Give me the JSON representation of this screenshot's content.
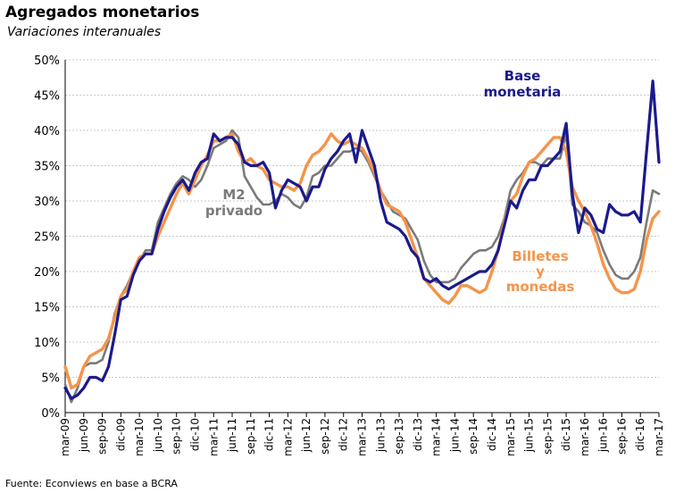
{
  "header": {
    "title": "Agregados monetarios",
    "subtitle": "Variaciones interanuales"
  },
  "footer": {
    "source": "Fuente: Econviews en base a BCRA"
  },
  "chart_data": {
    "type": "line",
    "title": "Agregados monetarios",
    "subtitle": "Variaciones interanuales",
    "xlabel": "",
    "ylabel": "",
    "ylim": [
      0,
      50
    ],
    "yticks": [
      "0%",
      "5%",
      "10%",
      "15%",
      "20%",
      "25%",
      "30%",
      "35%",
      "40%",
      "45%",
      "50%"
    ],
    "x_tick_labels": [
      "mar-09",
      "jun-09",
      "sep-09",
      "dic-09",
      "mar-10",
      "jun-10",
      "sep-10",
      "dic-10",
      "mar-11",
      "jun-11",
      "sep-11",
      "dic-11",
      "mar-12",
      "jun-12",
      "sep-12",
      "dic-12",
      "mar-13",
      "jun-13",
      "sep-13",
      "dic-13",
      "mar-14",
      "jun-14",
      "sep-14",
      "dic-14",
      "mar-15",
      "jun-15",
      "sep-15",
      "dic-15",
      "mar-16",
      "jun-16",
      "sep-16",
      "dic-16",
      "mar-17"
    ],
    "grid": true,
    "x": [
      "mar-09",
      "abr-09",
      "may-09",
      "jun-09",
      "jul-09",
      "ago-09",
      "sep-09",
      "oct-09",
      "nov-09",
      "dic-09",
      "ene-10",
      "feb-10",
      "mar-10",
      "abr-10",
      "may-10",
      "jun-10",
      "jul-10",
      "ago-10",
      "sep-10",
      "oct-10",
      "nov-10",
      "dic-10",
      "ene-11",
      "feb-11",
      "mar-11",
      "abr-11",
      "may-11",
      "jun-11",
      "jul-11",
      "ago-11",
      "sep-11",
      "oct-11",
      "nov-11",
      "dic-11",
      "ene-12",
      "feb-12",
      "mar-12",
      "abr-12",
      "may-12",
      "jun-12",
      "jul-12",
      "ago-12",
      "sep-12",
      "oct-12",
      "nov-12",
      "dic-12",
      "ene-13",
      "feb-13",
      "mar-13",
      "abr-13",
      "may-13",
      "jun-13",
      "jul-13",
      "ago-13",
      "sep-13",
      "oct-13",
      "nov-13",
      "dic-13",
      "ene-14",
      "feb-14",
      "mar-14",
      "abr-14",
      "may-14",
      "jun-14",
      "jul-14",
      "ago-14",
      "sep-14",
      "oct-14",
      "nov-14",
      "dic-14",
      "ene-15",
      "feb-15",
      "mar-15",
      "abr-15",
      "may-15",
      "jun-15",
      "jul-15",
      "ago-15",
      "sep-15",
      "oct-15",
      "nov-15",
      "dic-15",
      "ene-16",
      "feb-16",
      "mar-16",
      "abr-16",
      "may-16",
      "jun-16",
      "jul-16",
      "ago-16",
      "sep-16",
      "oct-16",
      "nov-16",
      "dic-16",
      "ene-17",
      "feb-17",
      "mar-17"
    ],
    "series": [
      {
        "name": "Base monetaria",
        "color": "#1a1a8c",
        "label": [
          "Base",
          "monetaria"
        ],
        "values": [
          3.5,
          2.0,
          2.5,
          3.5,
          5.0,
          5.0,
          4.5,
          6.5,
          11.0,
          16.0,
          16.5,
          19.5,
          21.5,
          22.5,
          22.5,
          26.0,
          28.5,
          30.5,
          32.0,
          33.0,
          31.5,
          34.0,
          35.5,
          36.0,
          39.5,
          38.5,
          39.0,
          39.0,
          38.0,
          35.5,
          35.0,
          35.0,
          35.5,
          34.0,
          29.0,
          31.5,
          33.0,
          32.5,
          32.0,
          30.0,
          32.0,
          32.0,
          34.5,
          36.0,
          37.0,
          38.5,
          39.5,
          35.5,
          40.0,
          37.5,
          35.0,
          30.0,
          27.0,
          26.5,
          26.0,
          25.0,
          23.0,
          22.0,
          19.0,
          18.5,
          19.0,
          18.0,
          17.5,
          18.0,
          18.5,
          19.0,
          19.5,
          20.0,
          20.0,
          21.0,
          23.0,
          26.5,
          30.0,
          29.0,
          31.5,
          33.0,
          33.0,
          35.0,
          35.0,
          36.0,
          37.0,
          41.0,
          31.0,
          25.5,
          29.0,
          28.0,
          26.0,
          25.5,
          29.5,
          28.5,
          28.0,
          28.0,
          28.5,
          27.0,
          37.0,
          47.0,
          35.5
        ]
      },
      {
        "name": "M2 privado",
        "color": "#7a7a7a",
        "label": [
          "M2",
          "privado"
        ],
        "values": [
          4.0,
          1.5,
          3.5,
          6.5,
          7.0,
          7.0,
          7.5,
          10.0,
          14.0,
          16.5,
          18.0,
          20.0,
          21.5,
          23.0,
          23.0,
          27.0,
          29.0,
          31.0,
          32.5,
          33.5,
          33.0,
          32.0,
          33.0,
          35.0,
          37.5,
          38.0,
          38.5,
          40.0,
          39.0,
          33.5,
          32.0,
          30.5,
          29.5,
          29.5,
          30.0,
          31.0,
          30.5,
          29.5,
          29.0,
          30.5,
          33.5,
          34.0,
          35.0,
          35.0,
          36.0,
          37.0,
          37.0,
          37.5,
          37.0,
          35.5,
          33.5,
          31.5,
          30.0,
          28.5,
          28.0,
          27.5,
          26.0,
          24.5,
          21.5,
          19.5,
          18.5,
          18.5,
          18.5,
          19.0,
          20.5,
          21.5,
          22.5,
          23.0,
          23.0,
          23.5,
          25.0,
          27.5,
          31.5,
          33.0,
          34.0,
          35.5,
          35.5,
          35.0,
          36.0,
          36.0,
          36.0,
          39.5,
          29.5,
          28.5,
          27.0,
          26.5,
          25.5,
          23.0,
          21.0,
          19.5,
          19.0,
          19.0,
          20.0,
          22.0,
          27.0,
          31.5,
          31.0
        ]
      },
      {
        "name": "Billetes y monedas",
        "color": "#f5944a",
        "label": [
          "Billetes",
          "y",
          "monedas"
        ],
        "values": [
          6.5,
          3.5,
          4.0,
          6.5,
          8.0,
          8.5,
          9.0,
          10.5,
          13.5,
          16.5,
          17.5,
          20.0,
          22.0,
          22.5,
          22.5,
          25.0,
          27.0,
          29.0,
          31.0,
          32.5,
          31.0,
          33.0,
          35.0,
          36.5,
          38.5,
          38.5,
          39.0,
          39.5,
          37.0,
          35.5,
          36.0,
          35.0,
          34.5,
          33.0,
          32.5,
          32.0,
          32.0,
          31.5,
          32.5,
          35.0,
          36.5,
          37.0,
          38.0,
          39.5,
          38.5,
          38.0,
          38.5,
          38.0,
          37.5,
          36.0,
          34.0,
          31.5,
          29.5,
          29.0,
          28.5,
          27.0,
          24.5,
          22.0,
          19.0,
          18.0,
          17.0,
          16.0,
          15.5,
          16.5,
          18.0,
          18.0,
          17.5,
          17.0,
          17.5,
          20.0,
          23.0,
          27.0,
          30.0,
          31.0,
          33.5,
          35.5,
          36.0,
          37.0,
          38.0,
          39.0,
          39.0,
          37.0,
          32.0,
          30.0,
          28.5,
          26.5,
          24.0,
          21.0,
          19.0,
          17.5,
          17.0,
          17.0,
          17.5,
          20.0,
          24.5,
          27.5,
          28.5
        ]
      }
    ]
  }
}
